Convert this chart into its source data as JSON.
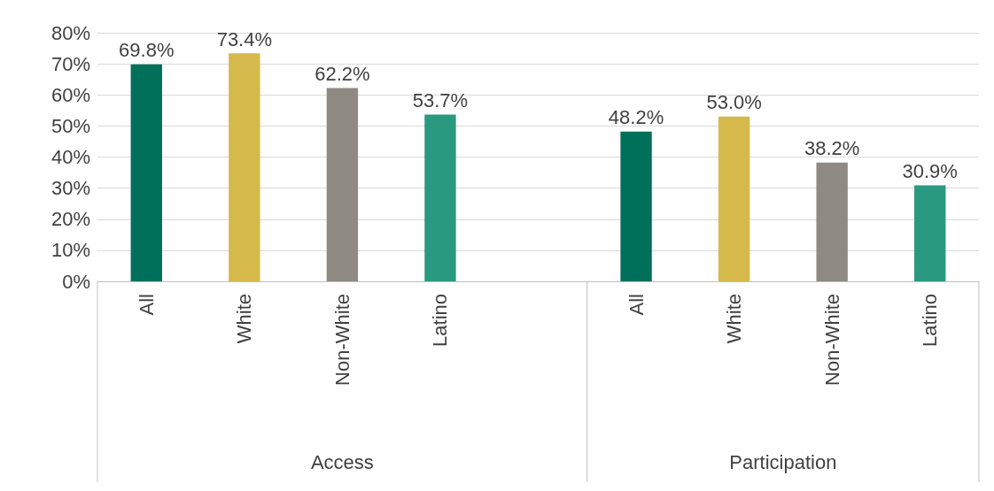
{
  "chart_data": {
    "type": "bar",
    "categories": [
      "All",
      "White",
      "Non-White",
      "Latino",
      null,
      "All",
      "White",
      "Non-White",
      "Latino"
    ],
    "values": [
      69.8,
      73.4,
      62.2,
      53.7,
      null,
      48.2,
      53.0,
      38.2,
      30.9
    ],
    "colors": [
      "#00705a",
      "#d5b94a",
      "#8f8a82",
      "#29997f",
      null,
      "#00705a",
      "#d5b94a",
      "#8f8a82",
      "#29997f"
    ],
    "value_labels": [
      "69.8%",
      "73.4%",
      "62.2%",
      "53.7%",
      null,
      "48.2%",
      "53.0%",
      "38.2%",
      "30.9%"
    ],
    "annotations": [
      "Access",
      "Participation"
    ],
    "ylim": [
      0,
      80
    ],
    "yticks": [
      {
        "value": 0,
        "label": "0%"
      },
      {
        "value": 10,
        "label": "10%"
      },
      {
        "value": 20,
        "label": "20%"
      },
      {
        "value": 30,
        "label": "30%"
      },
      {
        "value": 40,
        "label": "40%"
      },
      {
        "value": 50,
        "label": "50%"
      },
      {
        "value": 60,
        "label": "60%"
      },
      {
        "value": 70,
        "label": "70%"
      },
      {
        "value": 80,
        "label": "80%"
      }
    ],
    "grid": "y"
  }
}
